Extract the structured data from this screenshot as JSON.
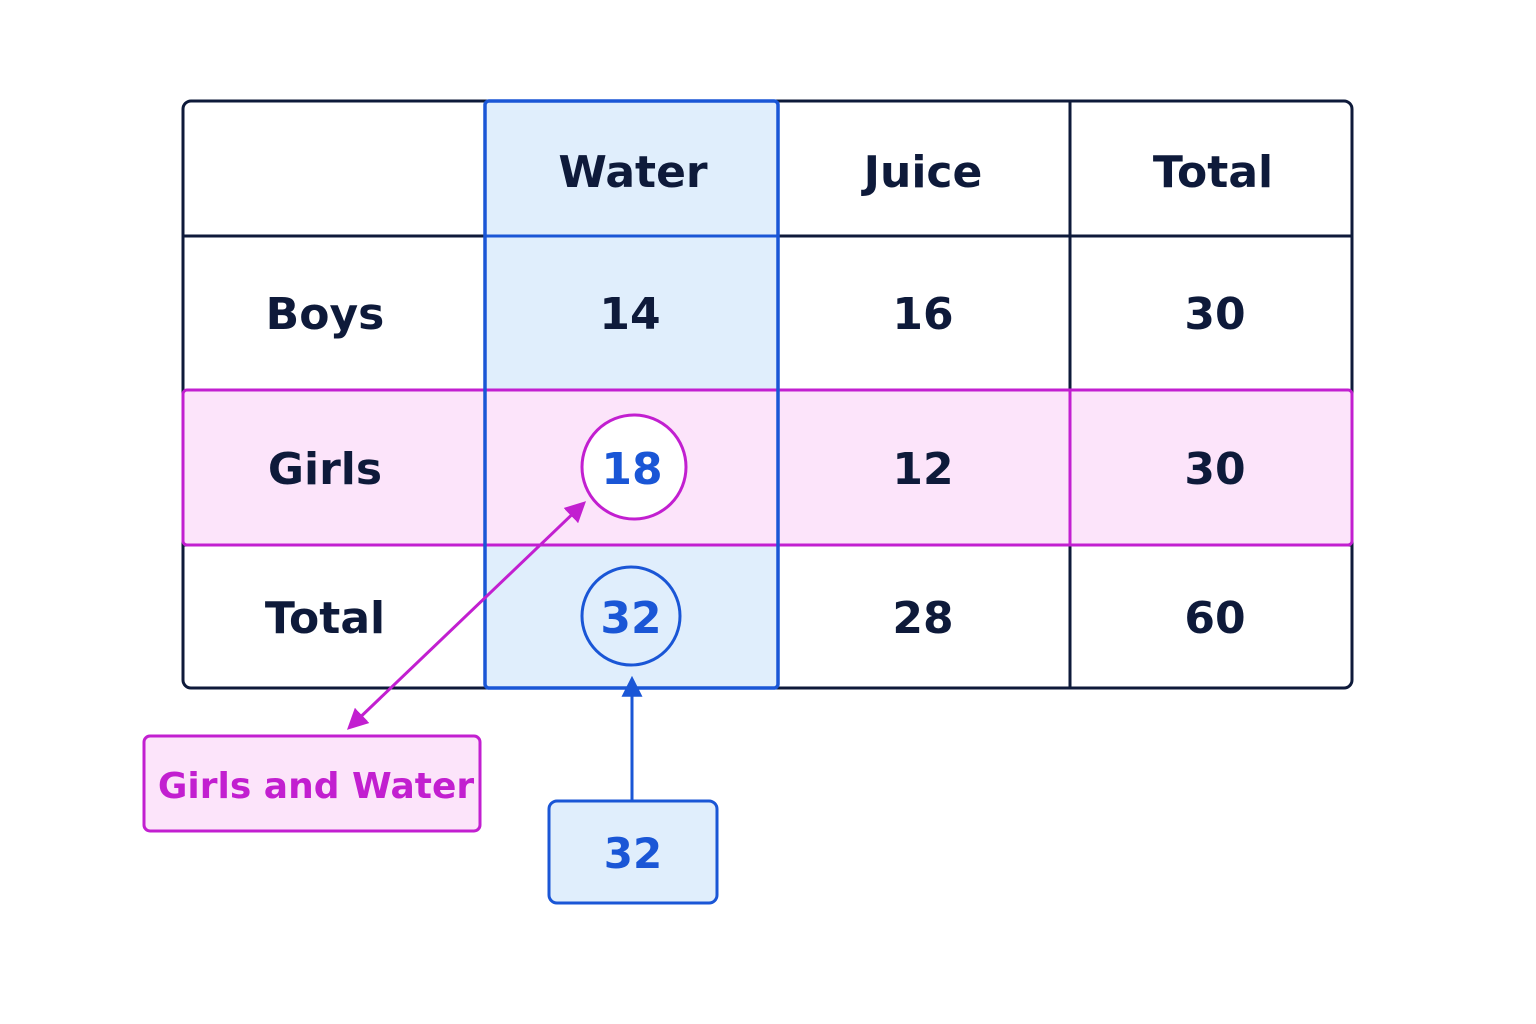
{
  "table": {
    "col_headers": [
      "",
      "Water",
      "Juice",
      "Total"
    ],
    "rows": [
      {
        "label": "Boys",
        "cells": [
          "14",
          "16",
          "30"
        ]
      },
      {
        "label": "Girls",
        "cells": [
          "18",
          "12",
          "30"
        ]
      },
      {
        "label": "Total",
        "cells": [
          "32",
          "28",
          "60"
        ]
      }
    ]
  },
  "highlights": {
    "column": "Water",
    "row": "Girls"
  },
  "callouts": {
    "girls_water_label": "Girls and Water",
    "water_total_label": "32"
  },
  "colors": {
    "ink": "#0e1a3a",
    "blue": "#1a56d6",
    "blue_fill": "#e0eefc",
    "pink": "#c21fd0",
    "pink_fill": "#fce4fa"
  }
}
